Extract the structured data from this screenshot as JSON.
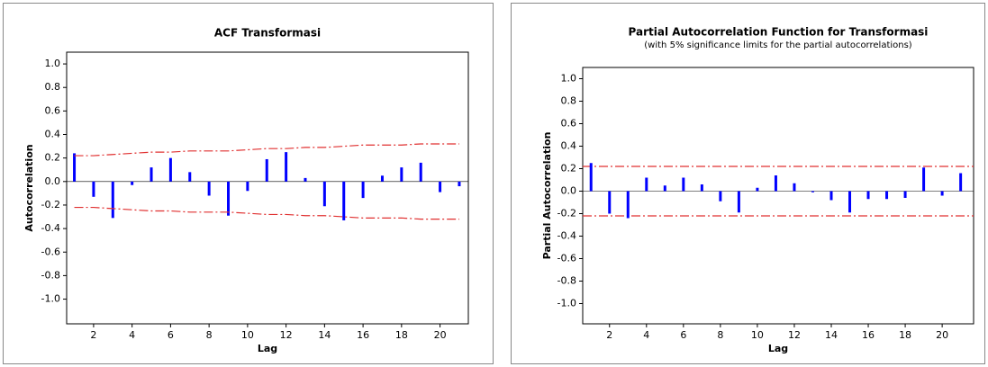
{
  "chart_data": [
    {
      "type": "bar",
      "title": "ACF Transformasi",
      "x_label": "Lag",
      "y_label": "Autocorrelation",
      "x": [
        1,
        2,
        3,
        4,
        5,
        6,
        7,
        8,
        9,
        10,
        11,
        12,
        13,
        14,
        15,
        16,
        17,
        18,
        19,
        20,
        21
      ],
      "series": [
        {
          "color": "#0000ff",
          "values": [
            0.24,
            -0.13,
            -0.31,
            -0.03,
            0.12,
            0.2,
            0.08,
            -0.12,
            -0.29,
            -0.08,
            0.19,
            0.25,
            0.03,
            -0.21,
            -0.33,
            -0.14,
            0.05,
            0.12,
            0.16,
            -0.09,
            -0.04
          ]
        },
        {
          "color": "#e03030",
          "style": "dashdot",
          "values": [
            0.22,
            0.22,
            0.23,
            0.24,
            0.25,
            0.25,
            0.26,
            0.26,
            0.26,
            0.27,
            0.28,
            0.28,
            0.29,
            0.29,
            0.3,
            0.31,
            0.31,
            0.31,
            0.32,
            0.32,
            0.32
          ]
        },
        {
          "color": "#e03030",
          "style": "dashdot",
          "values": [
            -0.22,
            -0.22,
            -0.23,
            -0.24,
            -0.25,
            -0.25,
            -0.26,
            -0.26,
            -0.26,
            -0.27,
            -0.28,
            -0.28,
            -0.29,
            -0.29,
            -0.3,
            -0.31,
            -0.31,
            -0.31,
            -0.32,
            -0.32,
            -0.32
          ]
        }
      ],
      "xlim": [
        0.6,
        21.47
      ],
      "xticks": [
        2,
        4,
        6,
        8,
        10,
        12,
        14,
        16,
        18,
        20
      ],
      "ylim": [
        -1.21,
        1.1
      ],
      "yticks": [
        {
          "value": 1,
          "label": "1.0"
        },
        0.8,
        0.6,
        0.4,
        0.2,
        {
          "value": 0,
          "label": "0.0"
        },
        -0.2,
        -0.4,
        -0.6,
        -0.8,
        {
          "value": -1,
          "label": "-1.0"
        }
      ]
    },
    {
      "type": "bar",
      "title": "Partial Autocorrelation Function for Transformasi",
      "subtitle": "(with 5% significance limits for the partial autocorrelations)",
      "x_label": "Lag",
      "y_label": "Partial Autocorrelation",
      "x": [
        1,
        2,
        3,
        4,
        5,
        6,
        7,
        8,
        9,
        10,
        11,
        12,
        13,
        14,
        15,
        16,
        17,
        18,
        19,
        20,
        21
      ],
      "series": [
        {
          "color": "#0000ff",
          "values": [
            0.25,
            -0.2,
            -0.24,
            0.12,
            0.05,
            0.12,
            0.06,
            -0.09,
            -0.19,
            0.03,
            0.14,
            0.07,
            -0.01,
            -0.08,
            -0.19,
            -0.07,
            -0.07,
            -0.06,
            0.21,
            -0.04,
            0.16
          ]
        }
      ],
      "hlines": {
        "color": "#e03030",
        "style": "dashdot",
        "values": [
          0.22,
          -0.22
        ]
      },
      "xlim": [
        0.55,
        21.7
      ],
      "xticks": [
        2,
        4,
        6,
        8,
        10,
        12,
        14,
        16,
        18,
        20
      ],
      "ylim": [
        -1.18,
        1.1
      ],
      "yticks": [
        {
          "value": 1,
          "label": "1.0"
        },
        0.8,
        0.6,
        0.4,
        0.2,
        {
          "value": 0,
          "label": "0.0"
        },
        -0.2,
        -0.4,
        -0.6,
        -0.8,
        {
          "value": -1,
          "label": "-1.0"
        }
      ]
    }
  ]
}
